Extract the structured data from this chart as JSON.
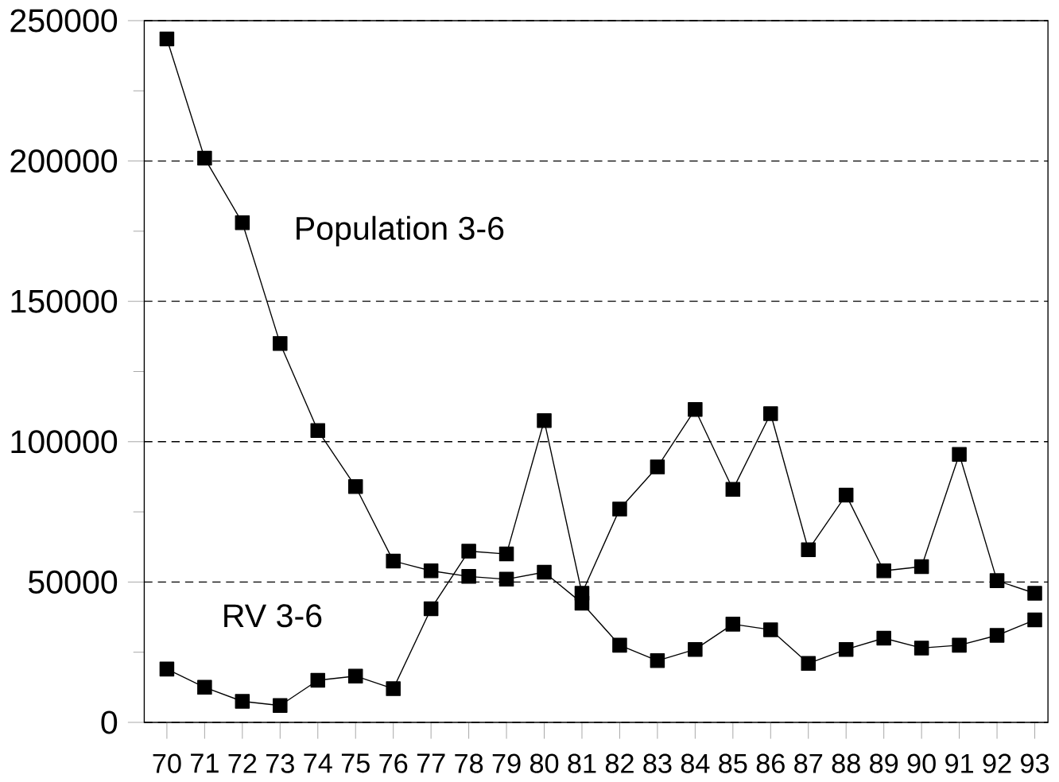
{
  "chart_data": {
    "type": "line",
    "categories": [
      "70",
      "71",
      "72",
      "73",
      "74",
      "75",
      "76",
      "77",
      "78",
      "79",
      "80",
      "81",
      "82",
      "83",
      "84",
      "85",
      "86",
      "87",
      "88",
      "89",
      "90",
      "91",
      "92",
      "93"
    ],
    "series": [
      {
        "name": "Population 3-6",
        "color": "#000000",
        "values": [
          243500,
          201000,
          178000,
          135000,
          104000,
          84000,
          57500,
          54000,
          52000,
          51000,
          53500,
          42500,
          27500,
          22000,
          26000,
          35000,
          33000,
          21000,
          26000,
          30000,
          26500,
          27500,
          31000,
          36500
        ]
      },
      {
        "name": "RV 3-6",
        "color": "#000000",
        "values": [
          19000,
          12500,
          7500,
          6000,
          15000,
          16500,
          12000,
          40500,
          61000,
          60000,
          107500,
          46000,
          76000,
          91000,
          111500,
          83000,
          110000,
          61500,
          81000,
          54000,
          55500,
          95500,
          50500,
          46000
        ]
      }
    ],
    "ylim": [
      0,
      250000
    ],
    "yticks": [
      0,
      50000,
      100000,
      150000,
      200000,
      250000
    ],
    "grid": "y",
    "marker": "square",
    "line_style": "solid",
    "legend": false
  }
}
